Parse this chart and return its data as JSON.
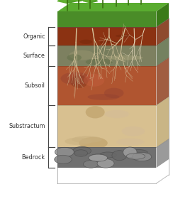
{
  "layers": [
    {
      "name": "Organic",
      "color": "#8B3212",
      "alt_color": "#7A2A0A",
      "prop": 0.12
    },
    {
      "name": "Surface",
      "color": "#7D8060",
      "alt_color": "#5C6B44",
      "prop": 0.13
    },
    {
      "name": "Subsoil",
      "color": "#B05530",
      "alt_color": "#904020",
      "prop": 0.25
    },
    {
      "name": "Substractum",
      "color": "#D8C090",
      "alt_color": "#C0A870",
      "prop": 0.27
    },
    {
      "name": "Bedrock",
      "color": "#707070",
      "alt_color": "#888888",
      "prop": 0.13
    }
  ],
  "grass_color": "#4A8C28",
  "grass_dark": "#3A7018",
  "label_color": "#333333",
  "bracket_color": "#444444",
  "background": "#ffffff",
  "root_color": "#D8C8A0",
  "root_color2": "#E8DCC0"
}
